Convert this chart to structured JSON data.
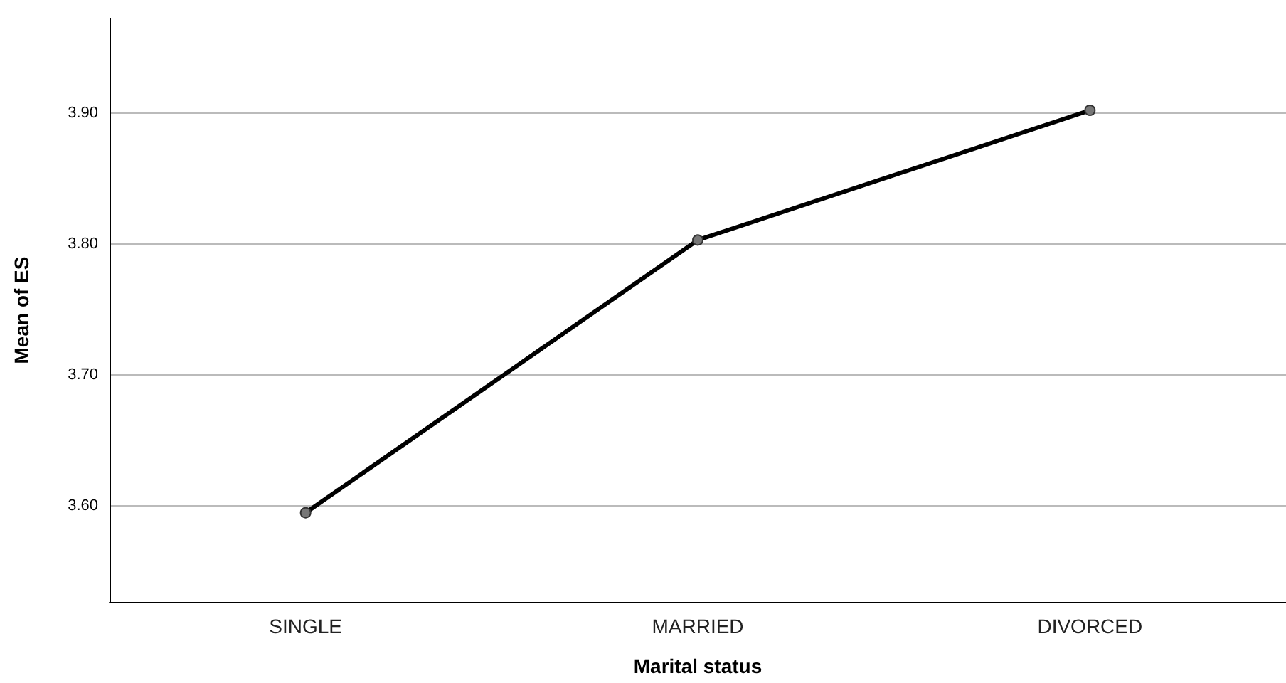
{
  "chart_data": {
    "type": "line",
    "xlabel": "Marital status",
    "ylabel": "Mean of ES",
    "categories": [
      "SINGLE",
      "MARRIED",
      "DIVORCED"
    ],
    "series": [
      {
        "color": "#000000",
        "values": [
          3.595,
          3.803,
          3.902
        ]
      }
    ],
    "ylim": [
      3.527,
      3.972
    ],
    "yticks": [
      {
        "value": 3.6,
        "label": "3.60"
      },
      {
        "value": 3.7,
        "label": "3.70"
      },
      {
        "value": 3.8,
        "label": "3.80"
      },
      {
        "value": 3.9,
        "label": "3.90"
      }
    ],
    "grid": "y",
    "marker": "circle",
    "line_style": "solid"
  }
}
